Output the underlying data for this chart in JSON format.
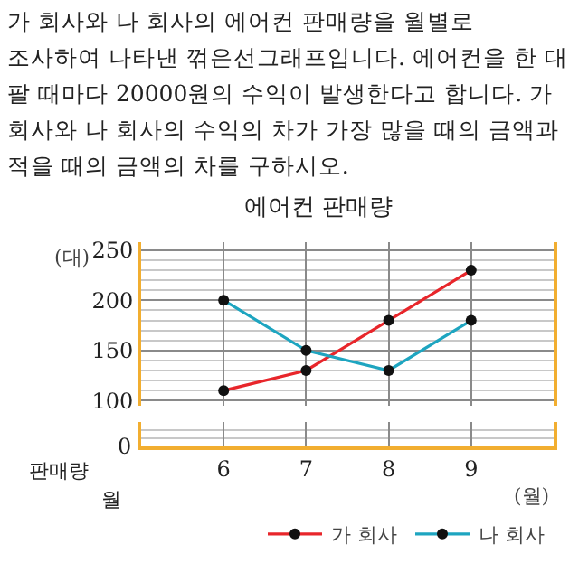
{
  "chart_data": {
    "type": "line",
    "title": "에어컨 판매량",
    "annotations": [
      "가 회사와 나 회사의 에어컨 판매량을 월별로 조사하여 나타낸 꺾은선그래프입니다. 에어컨을 한 대 팔 때마다 20000원의 수익이 발생한다고 합니다. 가 회사와 나 회사의 수익의 차가 가장 많을 때의 금액과 적을 때의 금액의 차를 구하시오.",
      "판매량",
      "월",
      "0"
    ],
    "xlabel": "(월)",
    "ylabel": "(대)",
    "x": [
      6,
      7,
      8,
      9
    ],
    "series": [
      {
        "name": "가 회사",
        "color": "#e8262b",
        "values": [
          110,
          130,
          180,
          230
        ]
      },
      {
        "name": "나 회사",
        "color": "#1ea5c0",
        "values": [
          200,
          150,
          130,
          180
        ]
      }
    ],
    "xlim": [
      5,
      10
    ],
    "xticks": [
      6,
      7,
      8,
      9
    ],
    "ylim": [
      95,
      258
    ],
    "yticks": [
      100,
      150,
      200,
      250
    ],
    "grid": true,
    "legend": "bottom right",
    "marker": "circle",
    "line_style": "solid"
  }
}
